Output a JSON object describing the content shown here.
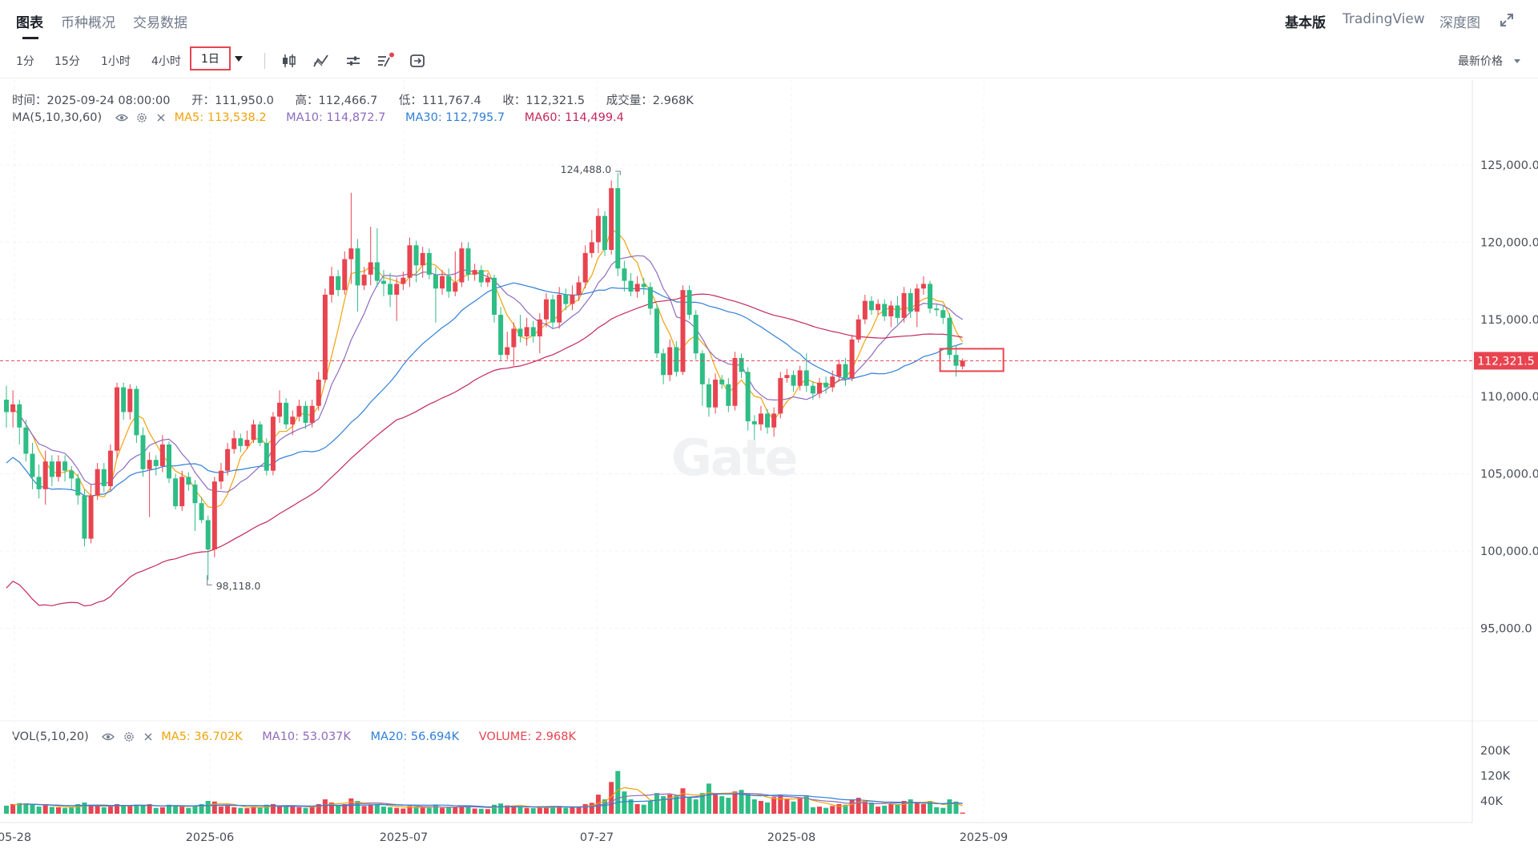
{
  "tabs": [
    {
      "label": "图表",
      "active": true
    },
    {
      "label": "币种概况",
      "active": false
    },
    {
      "label": "交易数据",
      "active": false
    }
  ],
  "right_tabs": [
    {
      "label": "基本版",
      "active": true
    },
    {
      "label": "TradingView",
      "active": false
    },
    {
      "label": "深度图",
      "active": false
    }
  ],
  "intervals": [
    {
      "label": "1分",
      "active": false
    },
    {
      "label": "15分",
      "active": false
    },
    {
      "label": "1小时",
      "active": false
    },
    {
      "label": "4小时",
      "active": false
    },
    {
      "label": "1日",
      "active": true
    }
  ],
  "toolbar_icons": [
    "candle-type-icon",
    "indicator-icon",
    "settings-icon",
    "drawing-icon",
    "reset-icon"
  ],
  "price_type": "最新价格",
  "ohlc": {
    "time": "时间：2025-09-24 08:00:00",
    "open": "开：111,950.0",
    "high": "高：112,466.7",
    "low": "低：111,767.4",
    "close": "收：112,321.5",
    "volume": "成交量：2.968K"
  },
  "ma_indicator": {
    "label": "MA(5,10,30,60)",
    "ma5": "MA5: 113,538.2",
    "ma10": "MA10: 114,872.7",
    "ma30": "MA30: 112,795.7",
    "ma60": "MA60: 114,499.4"
  },
  "vol_indicator": {
    "label": "VOL(5,10,20)",
    "ma5": "MA5: 36.702K",
    "ma10": "MA10: 53.037K",
    "ma20": "MA20: 56.694K",
    "volume": "VOLUME: 2.968K"
  },
  "colors": {
    "up": "#e84450",
    "down": "#2ebd85",
    "ma5": "#f0a30a",
    "ma10": "#8e6bbf",
    "ma30": "#2f7fd8",
    "ma60": "#c5285a"
  },
  "watermark": "Gate",
  "chart_data": {
    "type": "candlestick",
    "price_axis_labels": [
      "125,000.0",
      "120,000.0",
      "115,000.0",
      "110,000.0",
      "105,000.0",
      "100,000.0",
      "95,000.0"
    ],
    "price_axis_values": [
      125000,
      120000,
      115000,
      110000,
      105000,
      100000,
      95000
    ],
    "volume_axis_labels": [
      "200K",
      "120K",
      "40K"
    ],
    "volume_axis_values": [
      200,
      120,
      40
    ],
    "time_axis_labels": [
      "05-28",
      "2025-06",
      "2025-07",
      "07-27",
      "2025-08",
      "2025-09"
    ],
    "current_price": 112321.5,
    "current_price_label": "112,321.5",
    "high_marker": {
      "value": 124488.0,
      "label": "124,488.0"
    },
    "low_marker": {
      "value": 98118.0,
      "label": "98,118.0"
    },
    "ylim": [
      89000,
      130500
    ],
    "candles": [
      {
        "o": 109800,
        "c": 109000,
        "h": 110700,
        "l": 108000,
        "v": 25
      },
      {
        "o": 109000,
        "c": 109500,
        "h": 110400,
        "l": 108000,
        "v": 30
      },
      {
        "o": 109500,
        "c": 108000,
        "h": 109800,
        "l": 106900,
        "v": 33
      },
      {
        "o": 108000,
        "c": 106300,
        "h": 108500,
        "l": 105800,
        "v": 32
      },
      {
        "o": 106300,
        "c": 104800,
        "h": 107000,
        "l": 104000,
        "v": 28
      },
      {
        "o": 104800,
        "c": 104000,
        "h": 105600,
        "l": 103400,
        "v": 22
      },
      {
        "o": 104000,
        "c": 105800,
        "h": 106500,
        "l": 103000,
        "v": 26
      },
      {
        "o": 105800,
        "c": 104800,
        "h": 106200,
        "l": 104200,
        "v": 21
      },
      {
        "o": 104800,
        "c": 105800,
        "h": 106200,
        "l": 104500,
        "v": 20
      },
      {
        "o": 105800,
        "c": 105200,
        "h": 106200,
        "l": 104500,
        "v": 18
      },
      {
        "o": 105200,
        "c": 104700,
        "h": 105500,
        "l": 104000,
        "v": 19
      },
      {
        "o": 104700,
        "c": 103600,
        "h": 105000,
        "l": 103000,
        "v": 30
      },
      {
        "o": 103600,
        "c": 100800,
        "h": 104000,
        "l": 100300,
        "v": 35
      },
      {
        "o": 100800,
        "c": 103600,
        "h": 104300,
        "l": 100500,
        "v": 28
      },
      {
        "o": 103600,
        "c": 105300,
        "h": 105700,
        "l": 103300,
        "v": 24
      },
      {
        "o": 105300,
        "c": 104200,
        "h": 105700,
        "l": 103800,
        "v": 20
      },
      {
        "o": 104200,
        "c": 106500,
        "h": 106900,
        "l": 103900,
        "v": 22
      },
      {
        "o": 106500,
        "c": 110600,
        "h": 110900,
        "l": 106000,
        "v": 30
      },
      {
        "o": 110600,
        "c": 109000,
        "h": 110900,
        "l": 108500,
        "v": 26
      },
      {
        "o": 109000,
        "c": 110500,
        "h": 110800,
        "l": 108500,
        "v": 24
      },
      {
        "o": 110500,
        "c": 107500,
        "h": 110700,
        "l": 107000,
        "v": 28
      },
      {
        "o": 107500,
        "c": 105300,
        "h": 108000,
        "l": 104800,
        "v": 25
      },
      {
        "o": 105300,
        "c": 105900,
        "h": 106400,
        "l": 102200,
        "v": 30
      },
      {
        "o": 105900,
        "c": 105500,
        "h": 106200,
        "l": 104900,
        "v": 18
      },
      {
        "o": 105500,
        "c": 106900,
        "h": 107500,
        "l": 105100,
        "v": 20
      },
      {
        "o": 106900,
        "c": 104700,
        "h": 107100,
        "l": 104400,
        "v": 28
      },
      {
        "o": 104700,
        "c": 102900,
        "h": 105000,
        "l": 102700,
        "v": 26
      },
      {
        "o": 102900,
        "c": 104800,
        "h": 105200,
        "l": 102600,
        "v": 22
      },
      {
        "o": 104800,
        "c": 104300,
        "h": 105100,
        "l": 103900,
        "v": 18
      },
      {
        "o": 104300,
        "c": 103100,
        "h": 104600,
        "l": 101300,
        "v": 24
      },
      {
        "o": 103100,
        "c": 102000,
        "h": 103500,
        "l": 101800,
        "v": 30
      },
      {
        "o": 102000,
        "c": 100100,
        "h": 102300,
        "l": 98118,
        "v": 40
      },
      {
        "o": 100100,
        "c": 104500,
        "h": 104800,
        "l": 99600,
        "v": 38
      },
      {
        "o": 104500,
        "c": 105200,
        "h": 105700,
        "l": 104000,
        "v": 22
      },
      {
        "o": 105200,
        "c": 106600,
        "h": 107000,
        "l": 104900,
        "v": 24
      },
      {
        "o": 106600,
        "c": 107300,
        "h": 107800,
        "l": 106300,
        "v": 20
      },
      {
        "o": 107300,
        "c": 106800,
        "h": 107600,
        "l": 106400,
        "v": 18
      },
      {
        "o": 106800,
        "c": 107200,
        "h": 107800,
        "l": 106600,
        "v": 17
      },
      {
        "o": 107200,
        "c": 108200,
        "h": 108500,
        "l": 107000,
        "v": 22
      },
      {
        "o": 108200,
        "c": 107000,
        "h": 108400,
        "l": 106800,
        "v": 20
      },
      {
        "o": 107000,
        "c": 105200,
        "h": 107300,
        "l": 104900,
        "v": 28
      },
      {
        "o": 105200,
        "c": 108700,
        "h": 109000,
        "l": 104900,
        "v": 30
      },
      {
        "o": 108700,
        "c": 109600,
        "h": 110400,
        "l": 108300,
        "v": 24
      },
      {
        "o": 109600,
        "c": 108200,
        "h": 109900,
        "l": 107900,
        "v": 24
      },
      {
        "o": 108200,
        "c": 108700,
        "h": 109100,
        "l": 107500,
        "v": 22
      },
      {
        "o": 108700,
        "c": 109400,
        "h": 109800,
        "l": 108400,
        "v": 20
      },
      {
        "o": 109400,
        "c": 108300,
        "h": 109700,
        "l": 107900,
        "v": 18
      },
      {
        "o": 108300,
        "c": 109400,
        "h": 109800,
        "l": 108000,
        "v": 22
      },
      {
        "o": 109400,
        "c": 111100,
        "h": 111600,
        "l": 109100,
        "v": 30
      },
      {
        "o": 111100,
        "c": 116600,
        "h": 117000,
        "l": 110900,
        "v": 45
      },
      {
        "o": 116600,
        "c": 117800,
        "h": 118400,
        "l": 116100,
        "v": 35
      },
      {
        "o": 117800,
        "c": 116900,
        "h": 118200,
        "l": 116500,
        "v": 25
      },
      {
        "o": 116900,
        "c": 118900,
        "h": 119400,
        "l": 116600,
        "v": 30
      },
      {
        "o": 118900,
        "c": 119600,
        "h": 123200,
        "l": 117300,
        "v": 48
      },
      {
        "o": 119600,
        "c": 117200,
        "h": 120200,
        "l": 115500,
        "v": 40
      },
      {
        "o": 117200,
        "c": 117900,
        "h": 118400,
        "l": 116900,
        "v": 24
      },
      {
        "o": 117900,
        "c": 118700,
        "h": 121000,
        "l": 117200,
        "v": 26
      },
      {
        "o": 118700,
        "c": 117500,
        "h": 120900,
        "l": 117100,
        "v": 30
      },
      {
        "o": 117500,
        "c": 117300,
        "h": 118200,
        "l": 116500,
        "v": 22
      },
      {
        "o": 117300,
        "c": 116600,
        "h": 118000,
        "l": 115800,
        "v": 20
      },
      {
        "o": 116600,
        "c": 117300,
        "h": 117700,
        "l": 114900,
        "v": 18
      },
      {
        "o": 117300,
        "c": 117700,
        "h": 118100,
        "l": 116900,
        "v": 16
      },
      {
        "o": 117700,
        "c": 119800,
        "h": 120300,
        "l": 117100,
        "v": 24
      },
      {
        "o": 119800,
        "c": 118500,
        "h": 120100,
        "l": 117400,
        "v": 22
      },
      {
        "o": 118500,
        "c": 119300,
        "h": 119700,
        "l": 117700,
        "v": 20
      },
      {
        "o": 119300,
        "c": 117900,
        "h": 119600,
        "l": 117600,
        "v": 18
      },
      {
        "o": 117900,
        "c": 117000,
        "h": 118400,
        "l": 114800,
        "v": 26
      },
      {
        "o": 117000,
        "c": 117800,
        "h": 118200,
        "l": 116600,
        "v": 18
      },
      {
        "o": 117800,
        "c": 116800,
        "h": 118300,
        "l": 116400,
        "v": 20
      },
      {
        "o": 116800,
        "c": 117400,
        "h": 119400,
        "l": 116500,
        "v": 22
      },
      {
        "o": 117400,
        "c": 119600,
        "h": 120000,
        "l": 117100,
        "v": 26
      },
      {
        "o": 119600,
        "c": 117900,
        "h": 120000,
        "l": 117500,
        "v": 24
      },
      {
        "o": 117900,
        "c": 118200,
        "h": 118600,
        "l": 117500,
        "v": 16
      },
      {
        "o": 118200,
        "c": 117400,
        "h": 118500,
        "l": 117100,
        "v": 15
      },
      {
        "o": 117400,
        "c": 117700,
        "h": 118000,
        "l": 117100,
        "v": 14
      },
      {
        "o": 117700,
        "c": 115300,
        "h": 117900,
        "l": 114800,
        "v": 28
      },
      {
        "o": 115300,
        "c": 112700,
        "h": 115800,
        "l": 112300,
        "v": 32
      },
      {
        "o": 112700,
        "c": 113200,
        "h": 114200,
        "l": 112400,
        "v": 26
      },
      {
        "o": 113200,
        "c": 114400,
        "h": 114800,
        "l": 112000,
        "v": 22
      },
      {
        "o": 114400,
        "c": 113900,
        "h": 115300,
        "l": 113500,
        "v": 20
      },
      {
        "o": 113900,
        "c": 114500,
        "h": 115100,
        "l": 113300,
        "v": 18
      },
      {
        "o": 114500,
        "c": 113900,
        "h": 114900,
        "l": 113500,
        "v": 17
      },
      {
        "o": 113900,
        "c": 115000,
        "h": 115400,
        "l": 112800,
        "v": 20
      },
      {
        "o": 115000,
        "c": 116300,
        "h": 116700,
        "l": 114500,
        "v": 22
      },
      {
        "o": 116300,
        "c": 114800,
        "h": 116600,
        "l": 114400,
        "v": 20
      },
      {
        "o": 114800,
        "c": 116600,
        "h": 117100,
        "l": 114400,
        "v": 24
      },
      {
        "o": 116600,
        "c": 116000,
        "h": 117000,
        "l": 115600,
        "v": 18
      },
      {
        "o": 116000,
        "c": 116600,
        "h": 117200,
        "l": 115600,
        "v": 20
      },
      {
        "o": 116600,
        "c": 117400,
        "h": 117800,
        "l": 116200,
        "v": 22
      },
      {
        "o": 117400,
        "c": 119300,
        "h": 119800,
        "l": 117000,
        "v": 30
      },
      {
        "o": 119300,
        "c": 120000,
        "h": 120800,
        "l": 119000,
        "v": 34
      },
      {
        "o": 120000,
        "c": 121700,
        "h": 122200,
        "l": 119300,
        "v": 60
      },
      {
        "o": 121700,
        "c": 119500,
        "h": 122000,
        "l": 119100,
        "v": 45
      },
      {
        "o": 119500,
        "c": 123500,
        "h": 124000,
        "l": 119200,
        "v": 100
      },
      {
        "o": 123500,
        "c": 118300,
        "h": 124488,
        "l": 117800,
        "v": 135
      },
      {
        "o": 118300,
        "c": 117500,
        "h": 118800,
        "l": 116800,
        "v": 70
      },
      {
        "o": 117500,
        "c": 116800,
        "h": 118000,
        "l": 116500,
        "v": 45
      },
      {
        "o": 116800,
        "c": 117300,
        "h": 117800,
        "l": 116400,
        "v": 30
      },
      {
        "o": 117300,
        "c": 117100,
        "h": 117700,
        "l": 116600,
        "v": 28
      },
      {
        "o": 117100,
        "c": 115700,
        "h": 117400,
        "l": 115300,
        "v": 40
      },
      {
        "o": 115700,
        "c": 112800,
        "h": 116000,
        "l": 112500,
        "v": 65
      },
      {
        "o": 112800,
        "c": 111400,
        "h": 113100,
        "l": 110800,
        "v": 55
      },
      {
        "o": 111400,
        "c": 113200,
        "h": 113700,
        "l": 111000,
        "v": 60
      },
      {
        "o": 113200,
        "c": 111600,
        "h": 113600,
        "l": 111300,
        "v": 58
      },
      {
        "o": 111600,
        "c": 116900,
        "h": 117200,
        "l": 111400,
        "v": 80
      },
      {
        "o": 116900,
        "c": 115300,
        "h": 117200,
        "l": 115000,
        "v": 50
      },
      {
        "o": 115300,
        "c": 112800,
        "h": 115600,
        "l": 112400,
        "v": 45
      },
      {
        "o": 112800,
        "c": 110800,
        "h": 113000,
        "l": 109400,
        "v": 65
      },
      {
        "o": 110800,
        "c": 109300,
        "h": 111200,
        "l": 108700,
        "v": 95
      },
      {
        "o": 109300,
        "c": 111100,
        "h": 111500,
        "l": 108900,
        "v": 60
      },
      {
        "o": 111100,
        "c": 110800,
        "h": 111400,
        "l": 110500,
        "v": 55
      },
      {
        "o": 110800,
        "c": 109400,
        "h": 111200,
        "l": 109000,
        "v": 50
      },
      {
        "o": 109400,
        "c": 112500,
        "h": 112900,
        "l": 109100,
        "v": 70
      },
      {
        "o": 112500,
        "c": 111600,
        "h": 112800,
        "l": 111200,
        "v": 75
      },
      {
        "o": 111600,
        "c": 108400,
        "h": 111900,
        "l": 107800,
        "v": 65
      },
      {
        "o": 108400,
        "c": 108200,
        "h": 108800,
        "l": 107200,
        "v": 45
      },
      {
        "o": 108200,
        "c": 108900,
        "h": 109400,
        "l": 107800,
        "v": 40
      },
      {
        "o": 108900,
        "c": 108000,
        "h": 109200,
        "l": 107600,
        "v": 35
      },
      {
        "o": 108000,
        "c": 108900,
        "h": 109300,
        "l": 107400,
        "v": 52
      },
      {
        "o": 108900,
        "c": 111200,
        "h": 111600,
        "l": 108600,
        "v": 60
      },
      {
        "o": 111200,
        "c": 111400,
        "h": 111800,
        "l": 110900,
        "v": 45
      },
      {
        "o": 111400,
        "c": 110700,
        "h": 111700,
        "l": 110300,
        "v": 38
      },
      {
        "o": 110700,
        "c": 111700,
        "h": 112000,
        "l": 110400,
        "v": 50
      },
      {
        "o": 111700,
        "c": 110700,
        "h": 112800,
        "l": 110300,
        "v": 55
      },
      {
        "o": 110700,
        "c": 110200,
        "h": 111000,
        "l": 109800,
        "v": 20
      },
      {
        "o": 110200,
        "c": 110900,
        "h": 111200,
        "l": 109900,
        "v": 22
      },
      {
        "o": 110900,
        "c": 110600,
        "h": 111300,
        "l": 110200,
        "v": 18
      },
      {
        "o": 110600,
        "c": 111300,
        "h": 111700,
        "l": 110300,
        "v": 24
      },
      {
        "o": 111300,
        "c": 112100,
        "h": 112400,
        "l": 111000,
        "v": 30
      },
      {
        "o": 112100,
        "c": 111200,
        "h": 112500,
        "l": 110700,
        "v": 28
      },
      {
        "o": 111200,
        "c": 113700,
        "h": 114000,
        "l": 111000,
        "v": 45
      },
      {
        "o": 113700,
        "c": 115000,
        "h": 115300,
        "l": 113500,
        "v": 50
      },
      {
        "o": 115000,
        "c": 116200,
        "h": 116600,
        "l": 114700,
        "v": 40
      },
      {
        "o": 116200,
        "c": 115600,
        "h": 116500,
        "l": 115300,
        "v": 35
      },
      {
        "o": 115600,
        "c": 116000,
        "h": 116300,
        "l": 115300,
        "v": 22
      },
      {
        "o": 116000,
        "c": 115200,
        "h": 116300,
        "l": 114900,
        "v": 25
      },
      {
        "o": 115200,
        "c": 115900,
        "h": 116200,
        "l": 114500,
        "v": 30
      },
      {
        "o": 115900,
        "c": 115100,
        "h": 116500,
        "l": 114700,
        "v": 28
      },
      {
        "o": 115100,
        "c": 116700,
        "h": 117100,
        "l": 114800,
        "v": 40
      },
      {
        "o": 116700,
        "c": 115500,
        "h": 117000,
        "l": 115100,
        "v": 45
      },
      {
        "o": 115500,
        "c": 117000,
        "h": 117300,
        "l": 114500,
        "v": 35
      },
      {
        "o": 117000,
        "c": 117300,
        "h": 117800,
        "l": 116600,
        "v": 30
      },
      {
        "o": 117300,
        "c": 115700,
        "h": 117500,
        "l": 115400,
        "v": 40
      },
      {
        "o": 115700,
        "c": 115600,
        "h": 116000,
        "l": 115200,
        "v": 20
      },
      {
        "o": 115600,
        "c": 115100,
        "h": 115900,
        "l": 114700,
        "v": 18
      },
      {
        "o": 115100,
        "c": 112700,
        "h": 115400,
        "l": 112400,
        "v": 45
      },
      {
        "o": 112700,
        "c": 112000,
        "h": 113300,
        "l": 111300,
        "v": 38
      },
      {
        "o": 111950,
        "c": 112321.5,
        "h": 112466.7,
        "l": 111767.4,
        "v": 3
      }
    ]
  }
}
